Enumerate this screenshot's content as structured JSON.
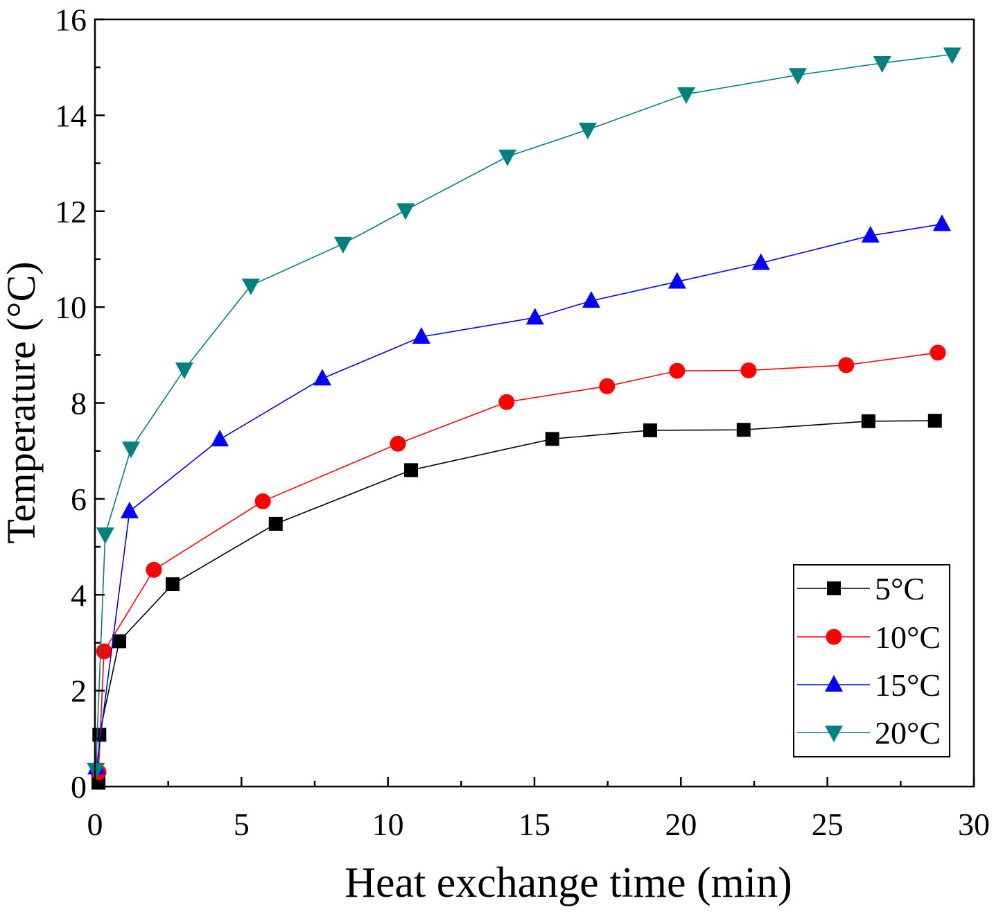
{
  "chart_data": {
    "type": "line",
    "title": "",
    "xlabel": "Heat exchange time (min)",
    "ylabel": "Temperature (°C)",
    "xlim": [
      0,
      30
    ],
    "ylim": [
      0,
      16
    ],
    "xticks": [
      0,
      5,
      10,
      15,
      20,
      25,
      30
    ],
    "yticks": [
      0,
      2,
      4,
      6,
      8,
      10,
      12,
      14,
      16
    ],
    "x_minor_step": 2.5,
    "y_minor_step": 1,
    "grid": false,
    "legend_position": "bottom-right",
    "series": [
      {
        "name": "5°C",
        "color": "#000000",
        "marker": "square",
        "points": [
          [
            0.12,
            0.08
          ],
          [
            0.15,
            1.08
          ],
          [
            0.83,
            3.03
          ],
          [
            2.65,
            4.22
          ],
          [
            6.17,
            5.48
          ],
          [
            10.79,
            6.6
          ],
          [
            15.61,
            7.25
          ],
          [
            18.95,
            7.43
          ],
          [
            22.14,
            7.44
          ],
          [
            26.4,
            7.62
          ],
          [
            28.67,
            7.63
          ]
        ]
      },
      {
        "name": "10°C",
        "color": "#ff0000",
        "marker": "circle",
        "points": [
          [
            0.12,
            0.3
          ],
          [
            0.31,
            2.82
          ],
          [
            2.01,
            4.52
          ],
          [
            5.73,
            5.95
          ],
          [
            10.34,
            7.15
          ],
          [
            14.05,
            8.02
          ],
          [
            17.48,
            8.35
          ],
          [
            19.87,
            8.67
          ],
          [
            22.31,
            8.68
          ],
          [
            25.64,
            8.79
          ],
          [
            28.77,
            9.05
          ]
        ]
      },
      {
        "name": "15°C",
        "color": "#0000ff",
        "marker": "triangle-up",
        "points": [
          [
            0.05,
            0.4
          ],
          [
            1.18,
            5.74
          ],
          [
            4.26,
            7.24
          ],
          [
            7.76,
            8.51
          ],
          [
            11.14,
            9.38
          ],
          [
            15.02,
            9.78
          ],
          [
            16.94,
            10.13
          ],
          [
            19.87,
            10.53
          ],
          [
            22.73,
            10.92
          ],
          [
            26.47,
            11.49
          ],
          [
            28.91,
            11.73
          ]
        ]
      },
      {
        "name": "20°C",
        "color": "#008080",
        "marker": "triangle-down",
        "points": [
          [
            0.03,
            0.35
          ],
          [
            0.35,
            5.26
          ],
          [
            1.23,
            7.05
          ],
          [
            3.05,
            8.7
          ],
          [
            5.32,
            10.45
          ],
          [
            8.47,
            11.32
          ],
          [
            10.6,
            12.02
          ],
          [
            14.08,
            13.14
          ],
          [
            16.82,
            13.7
          ],
          [
            20.18,
            14.44
          ],
          [
            23.99,
            14.84
          ],
          [
            26.87,
            15.09
          ],
          [
            29.26,
            15.27
          ]
        ]
      }
    ]
  }
}
